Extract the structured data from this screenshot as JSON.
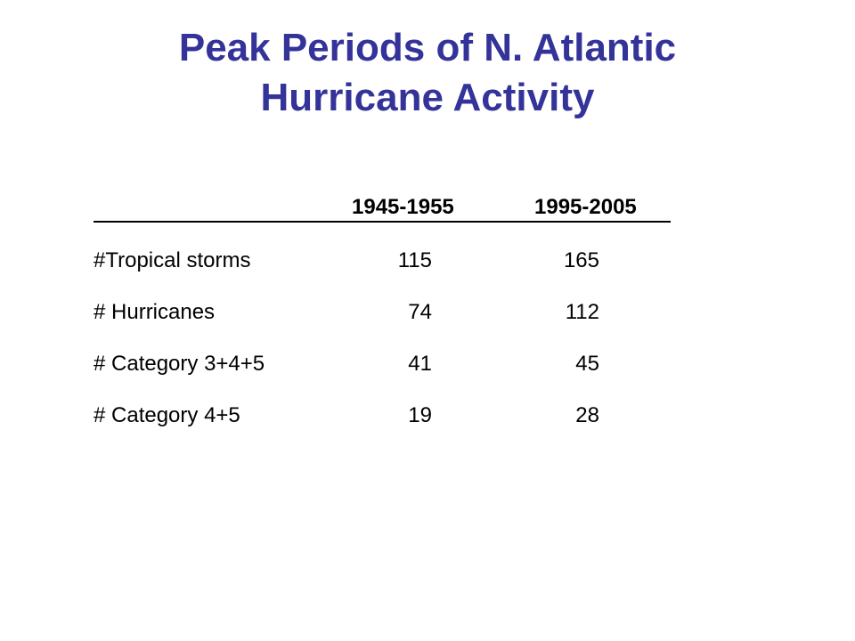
{
  "slide": {
    "title_line1": "Peak Periods of N. Atlantic",
    "title_line2": "Hurricane Activity"
  },
  "table": {
    "columns": [
      "1945-1955",
      "1995-2005"
    ],
    "rows": [
      {
        "label": "#Tropical storms",
        "values": [
          "115",
          "165"
        ]
      },
      {
        "label": "# Hurricanes",
        "values": [
          "74",
          "112"
        ]
      },
      {
        "label": "# Category 3+4+5",
        "values": [
          "41",
          "45"
        ]
      },
      {
        "label": "# Category 4+5",
        "values": [
          "19",
          "28"
        ]
      }
    ]
  },
  "colors": {
    "title": "#333399",
    "text": "#000000",
    "background": "#ffffff"
  }
}
